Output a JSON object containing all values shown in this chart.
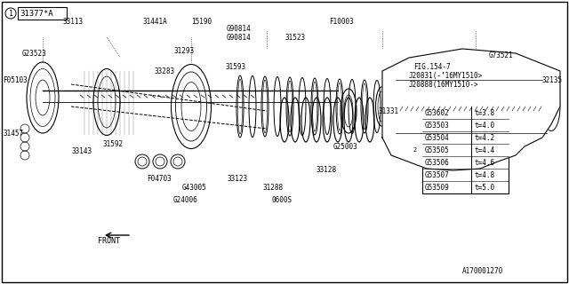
{
  "title": "",
  "bg_color": "#ffffff",
  "border_color": "#000000",
  "diagram_number": "A170001270",
  "fig_ref": "FIG.154-7",
  "note1": "J20831(-’16MY1510>",
  "note2": "J20888(16MY1510->",
  "part1_label": "31377*A",
  "circle1_label": "1",
  "circle2_label": "2",
  "parts": [
    "33113",
    "G23523",
    "31441A",
    "15190",
    "G90814",
    "G90814",
    "F10003",
    "31523",
    "31293",
    "F05103",
    "31593",
    "33283",
    "31592",
    "33143",
    "31457",
    "F04703",
    "G43005",
    "G24006",
    "33123",
    "0600S",
    "31288",
    "33128",
    "G25003",
    "31331",
    "G73521",
    "32135",
    "31377"
  ],
  "table_parts": [
    [
      "G53602",
      "t=3.8"
    ],
    [
      "G53503",
      "t=4.0"
    ],
    [
      "G53504",
      "t=4.2"
    ],
    [
      "G53505",
      "t=4.4"
    ],
    [
      "G53506",
      "t=4.6"
    ],
    [
      "G53507",
      "t=4.8"
    ],
    [
      "G53509",
      "t=5.0"
    ]
  ],
  "table_circle2_row": 3,
  "line_color": "#000000",
  "text_color": "#000000",
  "font_size": 6.5,
  "small_font": 5.5
}
